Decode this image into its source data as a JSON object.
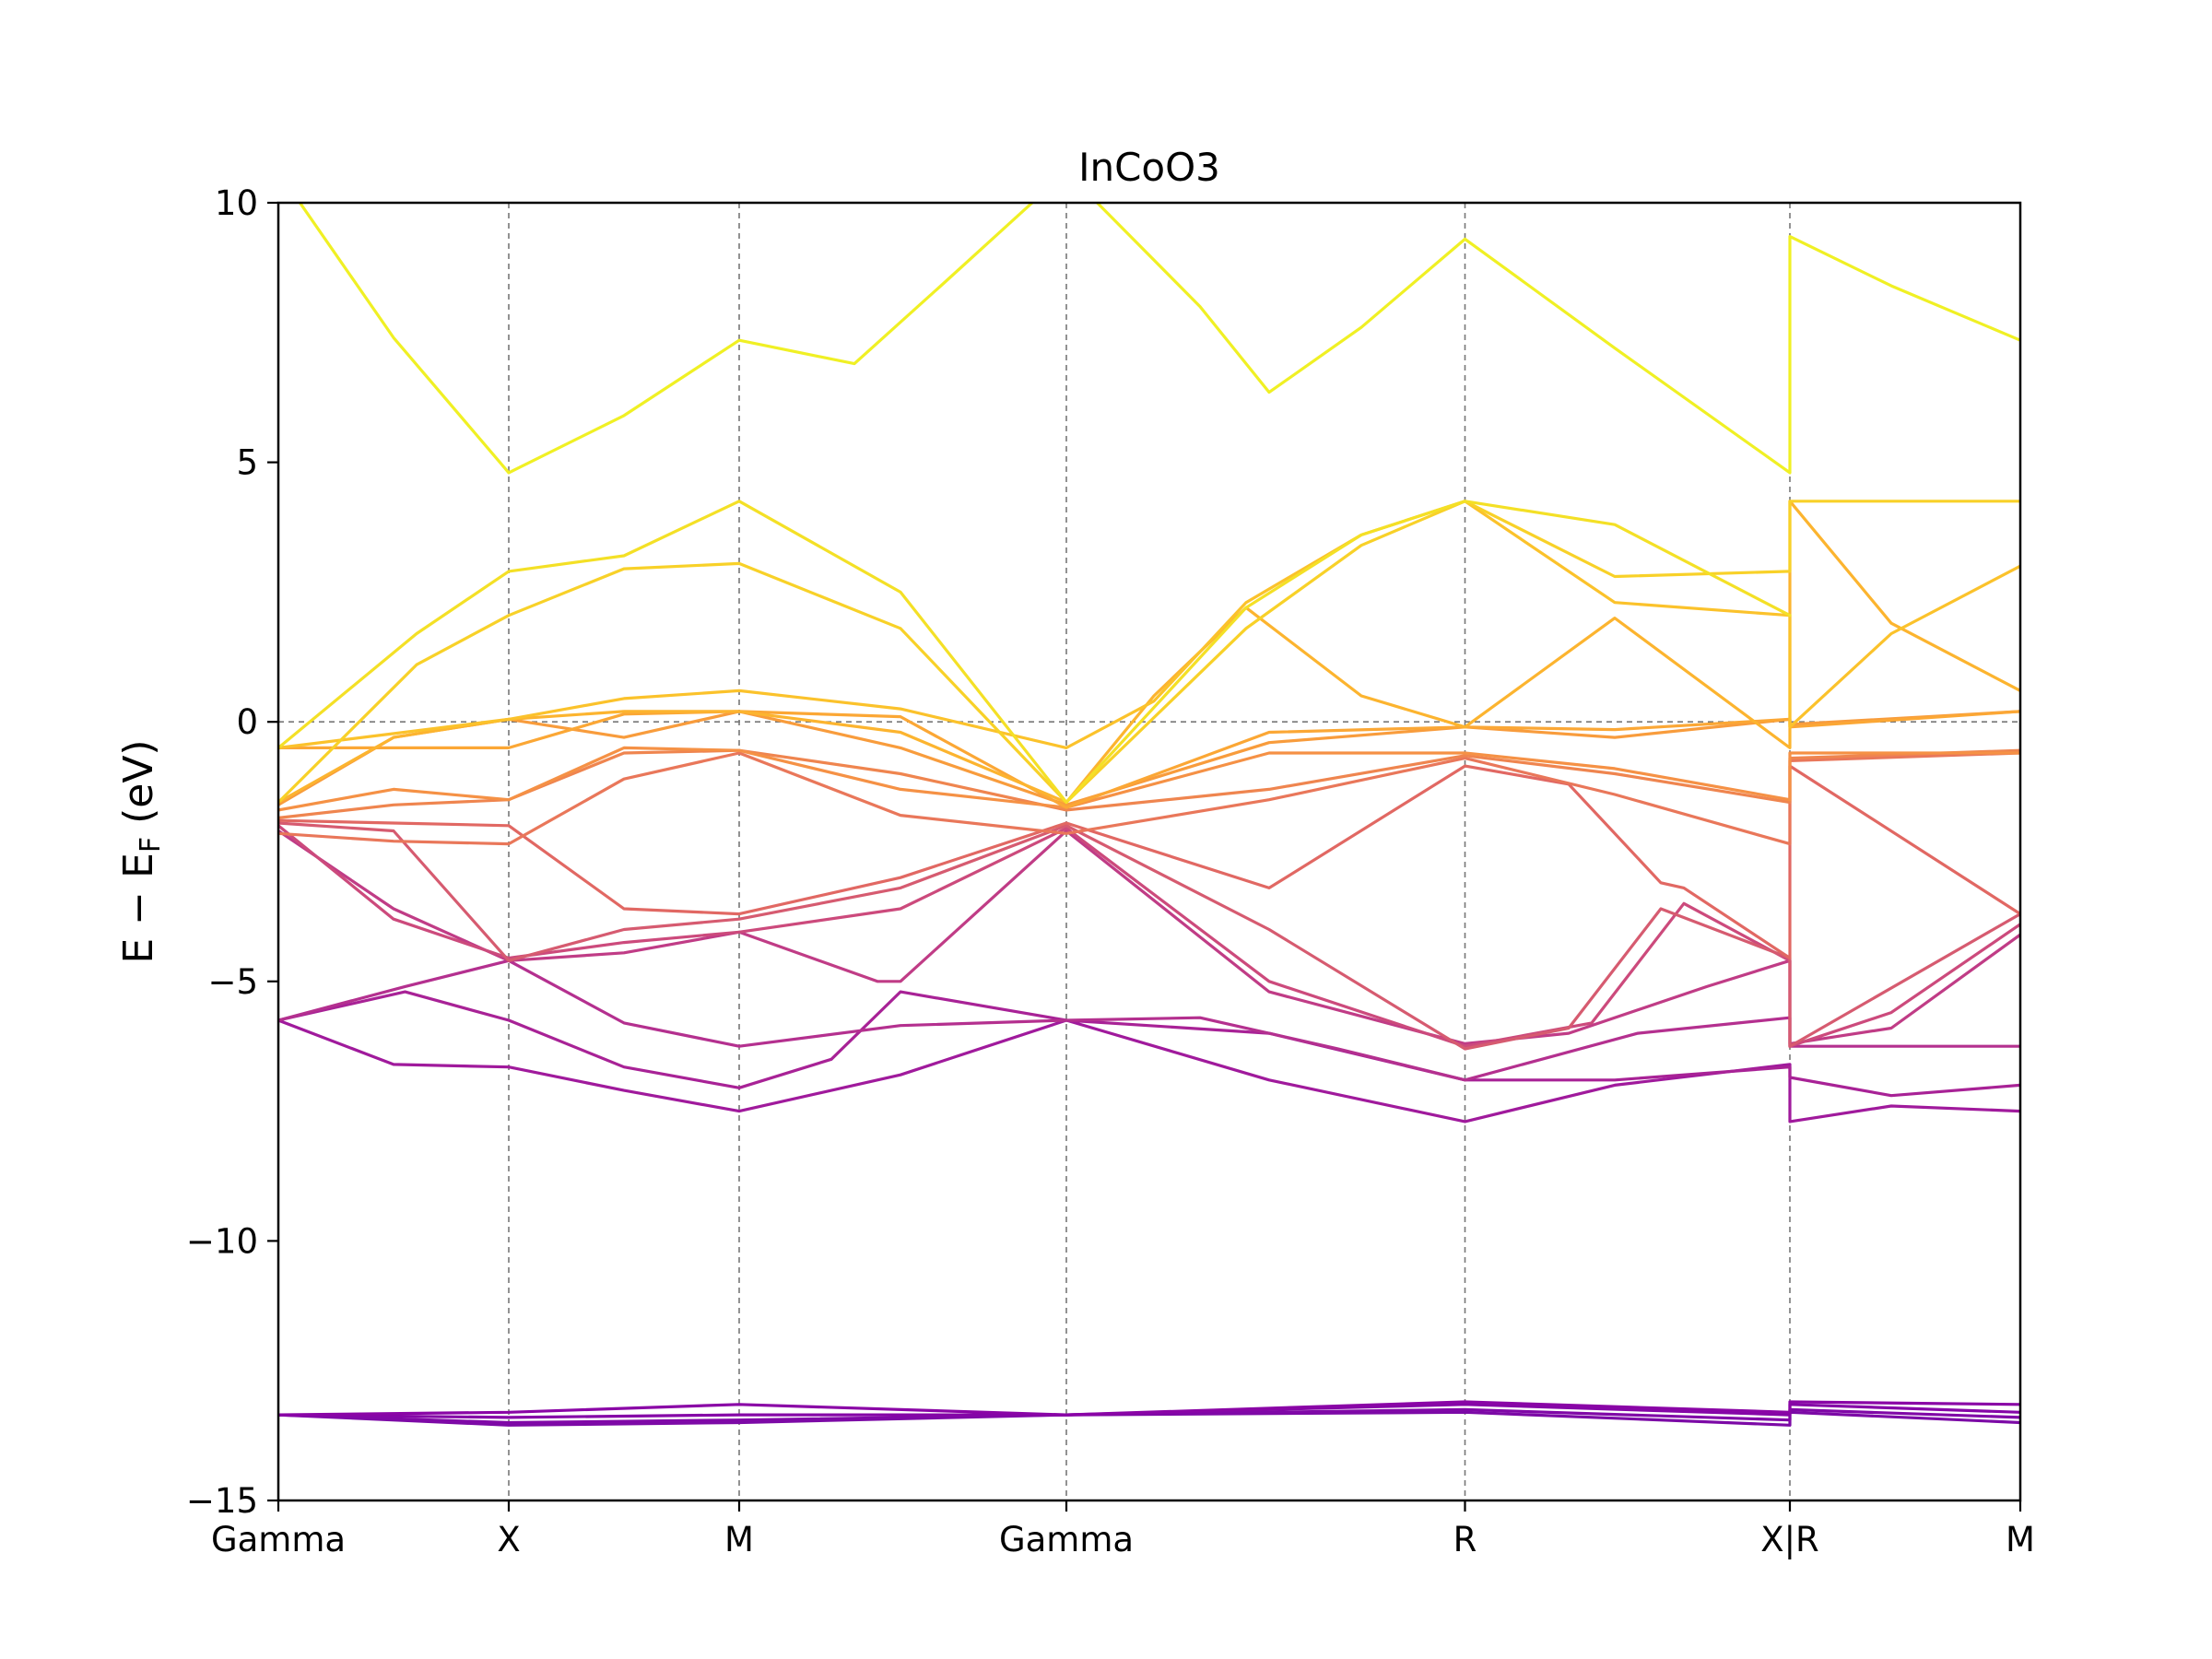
{
  "chart_data": {
    "type": "line",
    "title": "InCoO3",
    "ylabel": "E − E",
    "ylabel_sub": "F",
    "ylabel_unit": " (eV)",
    "xlabel": "",
    "ylim": [
      -15,
      10
    ],
    "yticks": [
      {
        "value": 10,
        "label": "10"
      },
      {
        "value": 5,
        "label": "5"
      },
      {
        "value": 0,
        "label": "0"
      },
      {
        "value": -5,
        "label": "−5"
      },
      {
        "value": -10,
        "label": "−10"
      },
      {
        "value": -15,
        "label": "−15"
      }
    ],
    "xlim": [
      0,
      7.56
    ],
    "kpoints": [
      {
        "label": "Gamma",
        "x": 0
      },
      {
        "label": "X",
        "x": 1
      },
      {
        "label": "M",
        "x": 2
      },
      {
        "label": "Gamma",
        "x": 3.42
      },
      {
        "label": "R",
        "x": 5.15
      },
      {
        "label": "X|R",
        "x": 6.56
      },
      {
        "label": "M",
        "x": 7.56
      }
    ],
    "fermi_level": 0,
    "grid": "dashed vertical lines at high-symmetry points and dashed line at E_F",
    "colormap": "plasma",
    "series": [
      {
        "color": "#7c0aa6",
        "points": [
          [
            0,
            -13.35
          ],
          [
            1,
            -13.55
          ],
          [
            2,
            -13.5
          ],
          [
            3.42,
            -13.35
          ],
          [
            5.15,
            -13.3
          ],
          [
            6.56,
            -13.55
          ],
          [
            6.56,
            -13.3
          ],
          [
            7.56,
            -13.5
          ]
        ]
      },
      {
        "color": "#8008a7",
        "points": [
          [
            0,
            -13.35
          ],
          [
            1,
            -13.5
          ],
          [
            2,
            -13.45
          ],
          [
            3.42,
            -13.35
          ],
          [
            5.15,
            -13.25
          ],
          [
            6.56,
            -13.45
          ],
          [
            6.56,
            -13.25
          ],
          [
            7.56,
            -13.4
          ]
        ]
      },
      {
        "color": "#8506a7",
        "points": [
          [
            0,
            -13.35
          ],
          [
            1,
            -13.4
          ],
          [
            2,
            -13.35
          ],
          [
            3.42,
            -13.35
          ],
          [
            5.15,
            -13.15
          ],
          [
            6.56,
            -13.35
          ],
          [
            6.56,
            -13.15
          ],
          [
            7.56,
            -13.3
          ]
        ]
      },
      {
        "color": "#8a05a6",
        "points": [
          [
            0,
            -13.35
          ],
          [
            1,
            -13.3
          ],
          [
            2,
            -13.15
          ],
          [
            3.42,
            -13.35
          ],
          [
            5.15,
            -13.1
          ],
          [
            6.56,
            -13.3
          ],
          [
            6.56,
            -13.1
          ],
          [
            7.56,
            -13.15
          ]
        ]
      },
      {
        "color": "#a01a9c",
        "points": [
          [
            0,
            -5.75
          ],
          [
            0.5,
            -6.6
          ],
          [
            1,
            -6.65
          ],
          [
            1.5,
            -7.1
          ],
          [
            2,
            -7.5
          ],
          [
            2.7,
            -6.8
          ],
          [
            3.42,
            -5.75
          ],
          [
            4.3,
            -6.9
          ],
          [
            5.15,
            -7.7
          ],
          [
            5.8,
            -7.0
          ],
          [
            6.56,
            -6.6
          ],
          [
            6.56,
            -7.7
          ],
          [
            7.0,
            -7.4
          ],
          [
            7.56,
            -7.5
          ]
        ]
      },
      {
        "color": "#a82296",
        "points": [
          [
            0,
            -5.75
          ],
          [
            0.55,
            -5.2
          ],
          [
            1,
            -5.75
          ],
          [
            1.5,
            -6.65
          ],
          [
            2,
            -7.05
          ],
          [
            2.4,
            -6.5
          ],
          [
            2.7,
            -5.2
          ],
          [
            3.42,
            -5.75
          ],
          [
            4.3,
            -6.0
          ],
          [
            5.15,
            -6.9
          ],
          [
            5.8,
            -6.9
          ],
          [
            6.56,
            -6.65
          ],
          [
            6.56,
            -6.85
          ],
          [
            7.0,
            -7.2
          ],
          [
            7.56,
            -7.0
          ]
        ]
      },
      {
        "color": "#b4308f",
        "points": [
          [
            0,
            -5.75
          ],
          [
            0.55,
            -5.1
          ],
          [
            1,
            -4.6
          ],
          [
            1.5,
            -5.8
          ],
          [
            2,
            -6.25
          ],
          [
            2.7,
            -5.85
          ],
          [
            3.42,
            -5.75
          ],
          [
            4.0,
            -5.7
          ],
          [
            4.6,
            -6.3
          ],
          [
            5.15,
            -6.9
          ],
          [
            5.9,
            -6.0
          ],
          [
            6.56,
            -5.7
          ],
          [
            6.56,
            -6.25
          ],
          [
            7.56,
            -6.25
          ]
        ]
      },
      {
        "color": "#c03c86",
        "points": [
          [
            0,
            -2.1
          ],
          [
            0.5,
            -3.6
          ],
          [
            1,
            -4.6
          ],
          [
            1.5,
            -4.45
          ],
          [
            2,
            -4.05
          ],
          [
            2.6,
            -5.0
          ],
          [
            2.7,
            -5.0
          ],
          [
            3.42,
            -2.1
          ],
          [
            4.3,
            -5.2
          ],
          [
            5.15,
            -6.2
          ],
          [
            5.6,
            -6.0
          ],
          [
            6.2,
            -5.1
          ],
          [
            6.56,
            -4.6
          ],
          [
            6.56,
            -6.2
          ],
          [
            7.0,
            -5.9
          ],
          [
            7.56,
            -4.1
          ]
        ]
      },
      {
        "color": "#cc4a7c",
        "points": [
          [
            0,
            -2.0
          ],
          [
            0.5,
            -3.8
          ],
          [
            1,
            -4.55
          ],
          [
            1.5,
            -4.25
          ],
          [
            2,
            -4.05
          ],
          [
            2.7,
            -3.6
          ],
          [
            3.42,
            -2.05
          ],
          [
            4.3,
            -5.0
          ],
          [
            5.15,
            -6.25
          ],
          [
            5.7,
            -5.8
          ],
          [
            6.1,
            -3.5
          ],
          [
            6.56,
            -4.6
          ],
          [
            6.56,
            -6.25
          ],
          [
            7.0,
            -5.6
          ],
          [
            7.56,
            -3.9
          ]
        ]
      },
      {
        "color": "#d65b70",
        "points": [
          [
            0,
            -1.95
          ],
          [
            0.5,
            -2.1
          ],
          [
            1,
            -4.6
          ],
          [
            1.5,
            -4.0
          ],
          [
            2,
            -3.8
          ],
          [
            2.7,
            -3.2
          ],
          [
            3.42,
            -2.0
          ],
          [
            4.3,
            -4.0
          ],
          [
            5.15,
            -6.3
          ],
          [
            5.6,
            -5.9
          ],
          [
            6.0,
            -3.6
          ],
          [
            6.56,
            -4.55
          ],
          [
            6.56,
            -6.25
          ],
          [
            7.56,
            -3.7
          ]
        ]
      },
      {
        "color": "#e16863",
        "points": [
          [
            0,
            -1.9
          ],
          [
            0.5,
            -1.95
          ],
          [
            1,
            -2.0
          ],
          [
            1.5,
            -3.6
          ],
          [
            2,
            -3.7
          ],
          [
            2.7,
            -3.0
          ],
          [
            3.42,
            -1.95
          ],
          [
            4.3,
            -3.2
          ],
          [
            5.15,
            -0.85
          ],
          [
            5.6,
            -1.2
          ],
          [
            6.0,
            -3.1
          ],
          [
            6.1,
            -3.2
          ],
          [
            6.56,
            -4.55
          ],
          [
            6.56,
            -0.85
          ],
          [
            7.56,
            -3.7
          ]
        ]
      },
      {
        "color": "#e9775a",
        "points": [
          [
            0,
            -2.15
          ],
          [
            0.5,
            -2.3
          ],
          [
            1,
            -2.35
          ],
          [
            1.5,
            -1.1
          ],
          [
            2,
            -0.6
          ],
          [
            2.7,
            -1.8
          ],
          [
            3.42,
            -2.15
          ],
          [
            4.3,
            -1.5
          ],
          [
            5.15,
            -0.7
          ],
          [
            5.8,
            -1.4
          ],
          [
            6.56,
            -2.35
          ],
          [
            6.56,
            -0.75
          ],
          [
            7.56,
            -0.6
          ]
        ]
      },
      {
        "color": "#ef854f",
        "points": [
          [
            0,
            -1.85
          ],
          [
            0.5,
            -1.6
          ],
          [
            1,
            -1.5
          ],
          [
            1.5,
            -0.6
          ],
          [
            2,
            -0.55
          ],
          [
            2.7,
            -1.0
          ],
          [
            3.42,
            -1.7
          ],
          [
            4.3,
            -1.3
          ],
          [
            5.15,
            -0.65
          ],
          [
            5.8,
            -1.0
          ],
          [
            6.56,
            -1.55
          ],
          [
            6.56,
            -0.7
          ],
          [
            7.56,
            -0.55
          ]
        ]
      },
      {
        "color": "#f59145",
        "points": [
          [
            0,
            -1.7
          ],
          [
            0.5,
            -1.3
          ],
          [
            1,
            -1.5
          ],
          [
            1.5,
            -0.5
          ],
          [
            2,
            -0.55
          ],
          [
            2.7,
            -1.3
          ],
          [
            3.42,
            -1.65
          ],
          [
            4.3,
            -0.6
          ],
          [
            5.15,
            -0.6
          ],
          [
            5.8,
            -0.9
          ],
          [
            6.56,
            -1.5
          ],
          [
            6.56,
            -0.6
          ],
          [
            7.56,
            -0.6
          ]
        ]
      },
      {
        "color": "#f89c3c",
        "points": [
          [
            0,
            -1.6
          ],
          [
            0.5,
            -0.3
          ],
          [
            1,
            0.05
          ],
          [
            1.5,
            -0.3
          ],
          [
            2,
            0.2
          ],
          [
            2.7,
            -0.5
          ],
          [
            3.42,
            -1.6
          ],
          [
            4.3,
            -0.4
          ],
          [
            5.15,
            -0.1
          ],
          [
            5.8,
            -0.3
          ],
          [
            6.56,
            0.05
          ],
          [
            6.56,
            -0.05
          ],
          [
            7.56,
            0.2
          ]
        ]
      },
      {
        "color": "#fba735",
        "points": [
          [
            0,
            -0.5
          ],
          [
            1,
            -0.5
          ],
          [
            1.5,
            0.15
          ],
          [
            2,
            0.2
          ],
          [
            2.7,
            0.1
          ],
          [
            3.42,
            -1.65
          ],
          [
            4.3,
            -0.2
          ],
          [
            5.15,
            -0.1
          ],
          [
            5.8,
            -0.15
          ],
          [
            6.56,
            0.05
          ],
          [
            6.56,
            -0.1
          ],
          [
            7.56,
            0.2
          ]
        ]
      },
      {
        "color": "#fcb42f",
        "points": [
          [
            0,
            -1.55
          ],
          [
            0.5,
            -0.3
          ],
          [
            1,
            0.05
          ],
          [
            1.5,
            0.2
          ],
          [
            2,
            0.2
          ],
          [
            2.7,
            -0.2
          ],
          [
            3.42,
            -1.55
          ],
          [
            3.8,
            0.5
          ],
          [
            4.2,
            2.2
          ],
          [
            4.7,
            0.5
          ],
          [
            5.15,
            -0.1
          ],
          [
            5.8,
            2.0
          ],
          [
            6.56,
            -0.5
          ],
          [
            6.56,
            4.25
          ],
          [
            7.0,
            1.9
          ],
          [
            7.56,
            0.6
          ]
        ]
      },
      {
        "color": "#fbc22b",
        "points": [
          [
            0,
            -0.5
          ],
          [
            1,
            0.05
          ],
          [
            1.5,
            0.45
          ],
          [
            2,
            0.6
          ],
          [
            2.7,
            0.25
          ],
          [
            3.42,
            -0.5
          ],
          [
            3.8,
            0.4
          ],
          [
            4.2,
            2.3
          ],
          [
            4.7,
            3.6
          ],
          [
            5.15,
            4.25
          ],
          [
            5.8,
            2.3
          ],
          [
            6.56,
            2.05
          ],
          [
            6.56,
            -0.1
          ],
          [
            7.0,
            1.7
          ],
          [
            7.56,
            3.0
          ]
        ]
      },
      {
        "color": "#f8d128",
        "points": [
          [
            0,
            -1.55
          ],
          [
            0.6,
            1.1
          ],
          [
            1,
            2.05
          ],
          [
            1.5,
            2.95
          ],
          [
            2,
            3.05
          ],
          [
            2.7,
            1.8
          ],
          [
            3.42,
            -1.55
          ],
          [
            4.2,
            1.8
          ],
          [
            4.7,
            3.4
          ],
          [
            5.15,
            4.25
          ],
          [
            5.8,
            2.8
          ],
          [
            6.56,
            2.9
          ],
          [
            6.56,
            4.25
          ],
          [
            7.56,
            4.25
          ]
        ]
      },
      {
        "color": "#f4e026",
        "points": [
          [
            0,
            -0.5
          ],
          [
            0.6,
            1.7
          ],
          [
            1,
            2.9
          ],
          [
            1.5,
            3.2
          ],
          [
            2,
            4.25
          ],
          [
            2.7,
            2.5
          ],
          [
            3.42,
            -1.55
          ],
          [
            4.2,
            2.2
          ],
          [
            4.7,
            3.6
          ],
          [
            5.15,
            4.25
          ],
          [
            5.8,
            3.8
          ],
          [
            6.56,
            2.05
          ]
        ]
      },
      {
        "color": "#f0f024",
        "points": [
          [
            0,
            10.6
          ],
          [
            0.5,
            7.4
          ],
          [
            1,
            4.8
          ],
          [
            1.5,
            5.9
          ],
          [
            2,
            7.35
          ],
          [
            2.5,
            6.9
          ],
          [
            2.9,
            8.5
          ],
          [
            3.42,
            10.6
          ],
          [
            4.0,
            8.0
          ],
          [
            4.3,
            6.35
          ],
          [
            4.7,
            7.6
          ],
          [
            5.15,
            9.3
          ],
          [
            5.8,
            7.2
          ],
          [
            6.56,
            4.8
          ],
          [
            6.56,
            9.35
          ],
          [
            7.0,
            8.4
          ],
          [
            7.56,
            7.35
          ]
        ]
      }
    ]
  }
}
